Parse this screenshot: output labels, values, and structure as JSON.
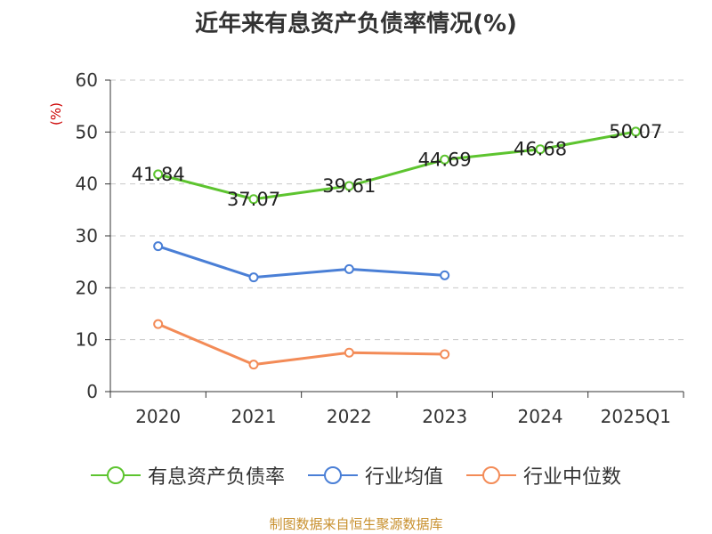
{
  "chart_data": {
    "type": "line",
    "title": "近年来有息资产负债率情况(%)",
    "ylabel": "(%)",
    "categories": [
      "2020",
      "2021",
      "2022",
      "2023",
      "2024",
      "2025Q1"
    ],
    "ylim": [
      0,
      60
    ],
    "yticks": [
      0,
      10,
      20,
      30,
      40,
      50,
      60
    ],
    "grid": true,
    "legend_position": "bottom",
    "series": [
      {
        "name": "有息资产负债率",
        "color": "#5dc42f",
        "values": [
          41.84,
          37.07,
          39.61,
          44.69,
          46.68,
          50.07
        ],
        "labels": [
          "41.84",
          "37.07",
          "39.61",
          "44.69",
          "46.68",
          "50.07"
        ]
      },
      {
        "name": "行业均值",
        "color": "#4a7fd6",
        "values": [
          28.0,
          22.0,
          23.6,
          22.4,
          null,
          null
        ]
      },
      {
        "name": "行业中位数",
        "color": "#f38b57",
        "values": [
          13.0,
          5.2,
          7.5,
          7.2,
          null,
          null
        ]
      }
    ],
    "source": "制图数据来自恒生聚源数据库"
  }
}
